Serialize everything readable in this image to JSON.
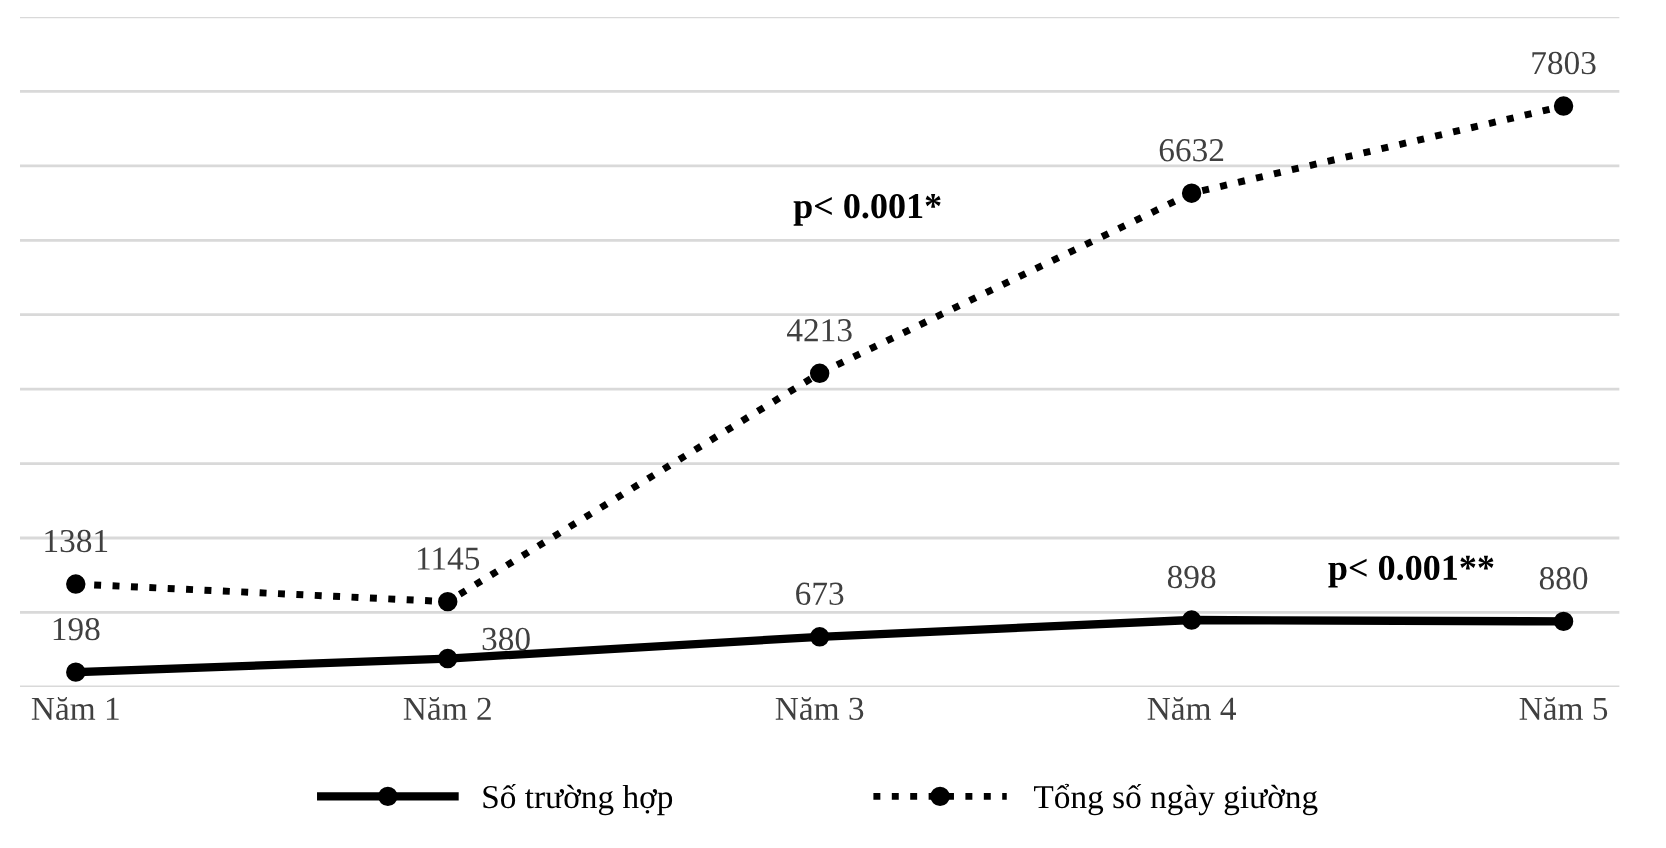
{
  "chart_data": {
    "type": "line",
    "categories": [
      "Năm 1",
      "Năm 2",
      "Năm 3",
      "Năm 4",
      "Năm 5"
    ],
    "series": [
      {
        "name": "Số trường hợp",
        "color": "#000000",
        "line_style": "solid",
        "values": [
          198,
          380,
          673,
          898,
          880
        ]
      },
      {
        "name": "Tổng số ngày giường",
        "color": "#000000",
        "line_style": "dotted",
        "values": [
          1381,
          1145,
          4213,
          6632,
          7803
        ]
      }
    ],
    "ylim": [
      0,
      9000
    ],
    "yticks": [
      {
        "value": 0,
        "label": null
      },
      {
        "value": 1000,
        "label": null
      },
      {
        "value": 2000,
        "label": null
      },
      {
        "value": 3000,
        "label": null
      },
      {
        "value": 4000,
        "label": null
      },
      {
        "value": 5000,
        "label": null
      },
      {
        "value": 6000,
        "label": null
      },
      {
        "value": 7000,
        "label": null
      },
      {
        "value": 8000,
        "label": null
      },
      {
        "value": 9000,
        "label": null
      }
    ],
    "grid": "y",
    "legend": "bottom",
    "marker": "circle",
    "data_labels": true,
    "annotations": [
      "p< 0.001*",
      "p< 0.001**"
    ]
  }
}
